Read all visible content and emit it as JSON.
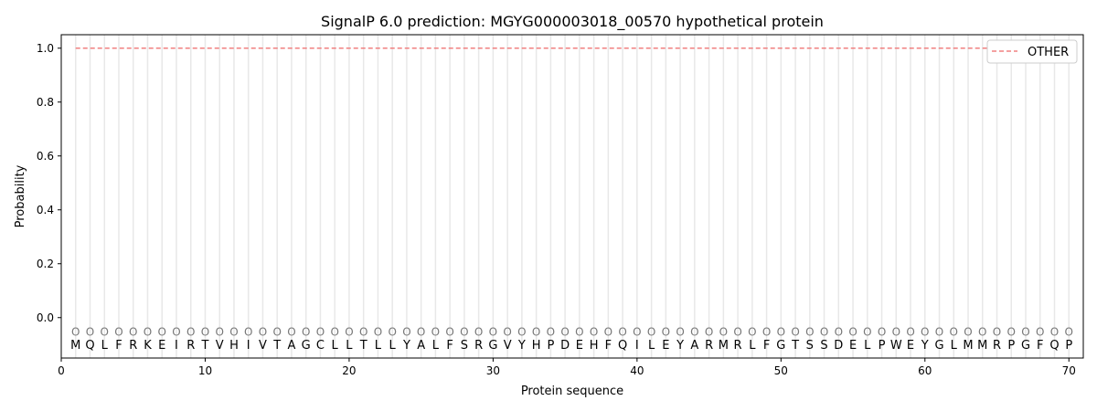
{
  "chart_data": {
    "type": "line",
    "title": "SignalP 6.0 prediction: MGYG000003018_00570 hypothetical protein",
    "xlabel": "Protein sequence",
    "ylabel": "Probability",
    "xlim": [
      0,
      71
    ],
    "ylim": [
      -0.15,
      1.05
    ],
    "xticks": [
      0,
      10,
      20,
      30,
      40,
      50,
      60,
      70
    ],
    "yticks": [
      0.0,
      0.2,
      0.4,
      0.6,
      0.8,
      1.0
    ],
    "ytick_labels": [
      "0.0",
      "0.2",
      "0.4",
      "0.6",
      "0.8",
      "1.0"
    ],
    "grid": "vertical lines at each residue",
    "legend_position": "top-right",
    "sequence": [
      "M",
      "Q",
      "L",
      "F",
      "R",
      "K",
      "E",
      "I",
      "R",
      "T",
      "V",
      "H",
      "I",
      "V",
      "T",
      "A",
      "G",
      "C",
      "L",
      "L",
      "T",
      "L",
      "L",
      "Y",
      "A",
      "L",
      "F",
      "S",
      "R",
      "G",
      "V",
      "Y",
      "H",
      "P",
      "D",
      "E",
      "H",
      "F",
      "Q",
      "I",
      "L",
      "E",
      "Y",
      "A",
      "R",
      "M",
      "R",
      "L",
      "F",
      "G",
      "T",
      "S",
      "S",
      "D",
      "E",
      "L",
      "P",
      "W",
      "E",
      "Y",
      "G",
      "L",
      "M",
      "M",
      "R",
      "P",
      "G",
      "F",
      "Q",
      "P"
    ],
    "predicted_label": "O",
    "series": [
      {
        "name": "OTHER",
        "color": "#f08080",
        "style": "dashed",
        "x_range": [
          1,
          70
        ],
        "value": 1.0
      }
    ]
  }
}
